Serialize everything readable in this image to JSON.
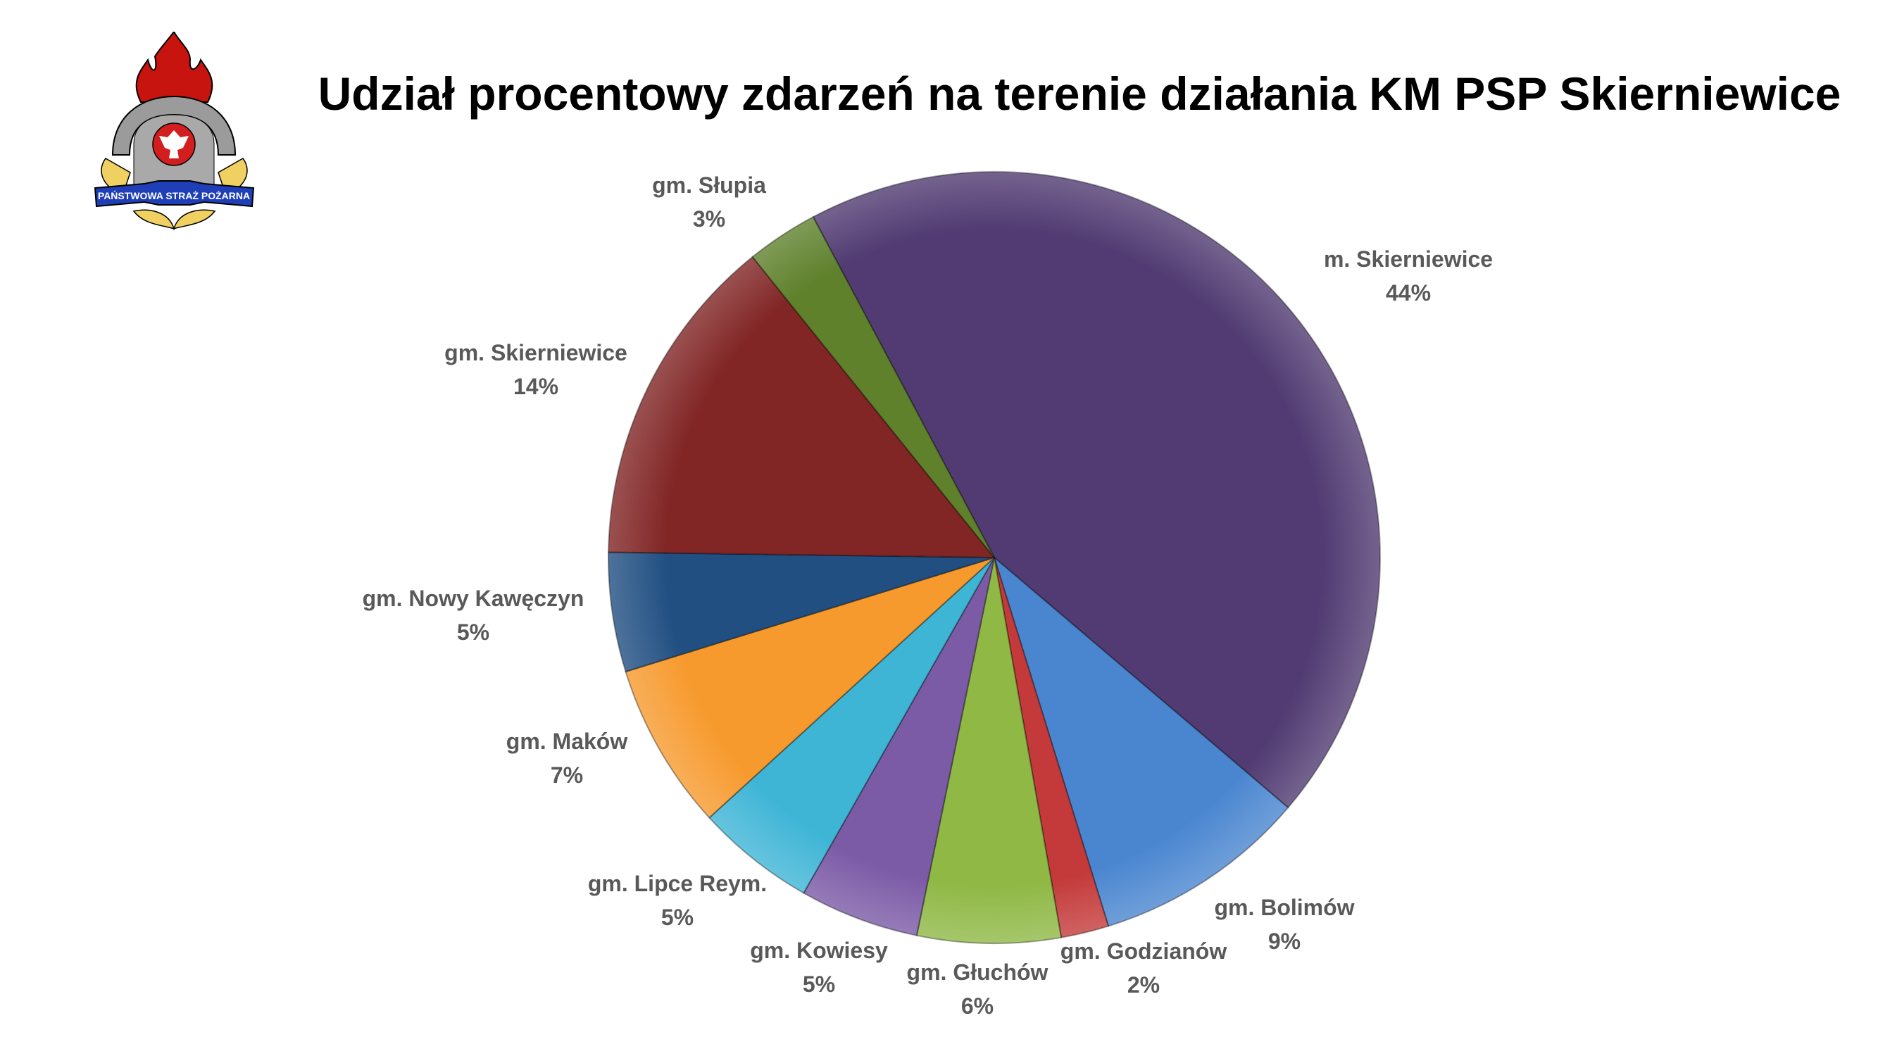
{
  "logo": {
    "text": "PAŃSTWOWA STRAŻ POŻARNA"
  },
  "chart_data": {
    "type": "pie",
    "title": "Udział procentowy zdarzeń na terenie działania KM PSP Skierniewice",
    "start_angle_deg": -28,
    "direction": "clockwise",
    "slices": [
      {
        "label": "m. Skierniewice",
        "value": 44,
        "pct": "44%",
        "color": "#513b72"
      },
      {
        "label": "gm. Bolimów",
        "value": 9,
        "pct": "9%",
        "color": "#4a86d0"
      },
      {
        "label": "gm. Godzianów",
        "value": 2,
        "pct": "2%",
        "color": "#c43a3a"
      },
      {
        "label": "gm. Głuchów",
        "value": 6,
        "pct": "6%",
        "color": "#8fb845"
      },
      {
        "label": "gm. Kowiesy",
        "value": 5,
        "pct": "5%",
        "color": "#7b5aa6"
      },
      {
        "label": "gm. Lipce Reym.",
        "value": 5,
        "pct": "5%",
        "color": "#3fb5d6"
      },
      {
        "label": "gm. Maków",
        "value": 7,
        "pct": "7%",
        "color": "#f79a2e"
      },
      {
        "label": "gm. Nowy Kawęczyn",
        "value": 5,
        "pct": "5%",
        "color": "#214f82"
      },
      {
        "label": "gm. Skierniewice",
        "value": 14,
        "pct": "14%",
        "color": "#812525"
      },
      {
        "label": "gm. Słupia",
        "value": 3,
        "pct": "3%",
        "color": "#5f812c"
      }
    ]
  }
}
